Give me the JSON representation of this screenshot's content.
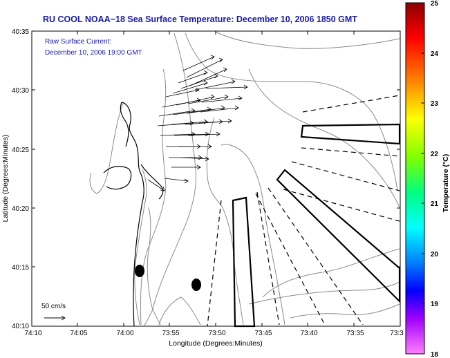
{
  "title": "RU COOL  NOAA−18  Sea Surface Temperature:  December 10, 2006 1850 GMT",
  "annotation": {
    "line1": "Raw Surface Current:",
    "line2": "December 10, 2006 19:00 GMT"
  },
  "axes": {
    "xlabel": "Longitude (Degrees:Minutes)",
    "ylabel": "Latitude (Degrees:Minutes)",
    "xticks": [
      "74:10",
      "74:05",
      "74:00",
      "73:55",
      "73:50",
      "73:45",
      "73:40",
      "73:35",
      "73:3"
    ],
    "yticks": [
      "40:35",
      "40:30",
      "40:25",
      "40:20",
      "40:15",
      "40:10"
    ]
  },
  "scale": {
    "label": "50 cm/s"
  },
  "colorbar": {
    "label": "Temperature (°C)",
    "ticks": [
      "25",
      "24",
      "23",
      "22",
      "21",
      "20",
      "19",
      "18"
    ],
    "colors": [
      "#8c0000",
      "#ff0000",
      "#ff8000",
      "#ffff00",
      "#80ff00",
      "#00ff80",
      "#00ffff",
      "#0080ff",
      "#0000ff",
      "#a000ff",
      "#ff80ff"
    ]
  },
  "map": {
    "coastline_color": "#000000",
    "contour_color": "#8a8a8a",
    "vector_color": "#000000"
  }
}
